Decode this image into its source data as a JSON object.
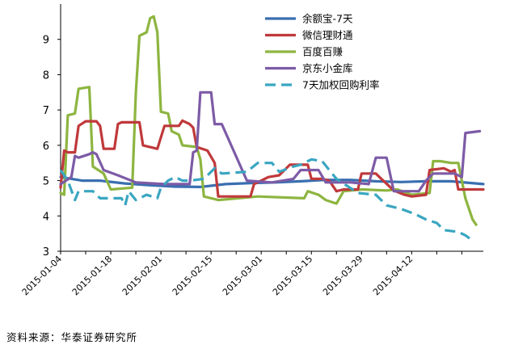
{
  "chart_data": {
    "type": "line",
    "title": "",
    "xlabel": "",
    "ylabel": "",
    "ylim": [
      3,
      10
    ],
    "yticks": [
      3,
      4,
      5,
      6,
      7,
      8,
      9
    ],
    "xlim": [
      "2015-01-04",
      "2015-05-02"
    ],
    "xticks": [
      "2015-01-04",
      "2015-01-18",
      "2015-02-01",
      "2015-02-15",
      "2015-03-01",
      "2015-03-15",
      "2015-03-29",
      "2015-04-12"
    ],
    "grid": false,
    "legend_position": "top-right",
    "series": [
      {
        "name": "余额宝-7天",
        "color": "#3a6fb0",
        "style": "solid",
        "points": [
          [
            "2015-01-04",
            5.1
          ],
          [
            "2015-01-10",
            5.0
          ],
          [
            "2015-01-15",
            5.0
          ],
          [
            "2015-01-22",
            4.92
          ],
          [
            "2015-01-29",
            4.87
          ],
          [
            "2015-02-05",
            4.83
          ],
          [
            "2015-02-12",
            4.82
          ],
          [
            "2015-02-19",
            4.9
          ],
          [
            "2015-02-26",
            4.93
          ],
          [
            "2015-03-05",
            4.95
          ],
          [
            "2015-03-12",
            4.98
          ],
          [
            "2015-03-19",
            5.02
          ],
          [
            "2015-03-26",
            5.02
          ],
          [
            "2015-04-02",
            4.98
          ],
          [
            "2015-04-09",
            4.96
          ],
          [
            "2015-04-16",
            4.98
          ],
          [
            "2015-04-23",
            4.98
          ],
          [
            "2015-05-02",
            4.9
          ]
        ]
      },
      {
        "name": "微信理财通",
        "color": "#c0393b",
        "style": "solid",
        "points": [
          [
            "2015-01-04",
            4.8
          ],
          [
            "2015-01-05",
            5.85
          ],
          [
            "2015-01-06",
            5.8
          ],
          [
            "2015-01-08",
            5.8
          ],
          [
            "2015-01-09",
            6.55
          ],
          [
            "2015-01-11",
            6.68
          ],
          [
            "2015-01-14",
            6.68
          ],
          [
            "2015-01-15",
            6.55
          ],
          [
            "2015-01-16",
            5.9
          ],
          [
            "2015-01-19",
            5.9
          ],
          [
            "2015-01-20",
            6.6
          ],
          [
            "2015-01-21",
            6.65
          ],
          [
            "2015-01-26",
            6.65
          ],
          [
            "2015-01-27",
            6.0
          ],
          [
            "2015-01-31",
            5.9
          ],
          [
            "2015-02-02",
            6.55
          ],
          [
            "2015-02-06",
            6.55
          ],
          [
            "2015-02-07",
            6.7
          ],
          [
            "2015-02-09",
            6.6
          ],
          [
            "2015-02-10",
            6.5
          ],
          [
            "2015-02-11",
            5.95
          ],
          [
            "2015-02-14",
            5.85
          ],
          [
            "2015-02-16",
            5.5
          ],
          [
            "2015-02-17",
            4.55
          ],
          [
            "2015-02-26",
            4.55
          ],
          [
            "2015-02-27",
            4.9
          ],
          [
            "2015-03-03",
            5.1
          ],
          [
            "2015-03-06",
            5.15
          ],
          [
            "2015-03-09",
            5.45
          ],
          [
            "2015-03-11",
            5.45
          ],
          [
            "2015-03-14",
            5.45
          ],
          [
            "2015-03-15",
            5.05
          ],
          [
            "2015-03-18",
            5.05
          ],
          [
            "2015-03-20",
            5.0
          ],
          [
            "2015-03-22",
            4.7
          ],
          [
            "2015-03-24",
            4.75
          ],
          [
            "2015-03-28",
            4.75
          ],
          [
            "2015-03-29",
            5.2
          ],
          [
            "2015-04-02",
            5.2
          ],
          [
            "2015-04-03",
            5.1
          ],
          [
            "2015-04-07",
            4.72
          ],
          [
            "2015-04-10",
            4.6
          ],
          [
            "2015-04-12",
            4.55
          ],
          [
            "2015-04-16",
            4.6
          ],
          [
            "2015-04-17",
            5.3
          ],
          [
            "2015-04-21",
            5.35
          ],
          [
            "2015-04-23",
            5.25
          ],
          [
            "2015-04-24",
            5.3
          ],
          [
            "2015-04-25",
            4.75
          ],
          [
            "2015-05-02",
            4.75
          ]
        ]
      },
      {
        "name": "百度百赚",
        "color": "#8db540",
        "style": "solid",
        "points": [
          [
            "2015-01-04",
            4.65
          ],
          [
            "2015-01-05",
            4.6
          ],
          [
            "2015-01-06",
            6.85
          ],
          [
            "2015-01-08",
            6.9
          ],
          [
            "2015-01-09",
            7.6
          ],
          [
            "2015-01-12",
            7.65
          ],
          [
            "2015-01-13",
            5.4
          ],
          [
            "2015-01-16",
            5.2
          ],
          [
            "2015-01-18",
            4.75
          ],
          [
            "2015-01-24",
            4.8
          ],
          [
            "2015-01-25",
            7.5
          ],
          [
            "2015-01-26",
            9.1
          ],
          [
            "2015-01-28",
            9.2
          ],
          [
            "2015-01-29",
            9.6
          ],
          [
            "2015-01-30",
            9.65
          ],
          [
            "2015-01-31",
            9.2
          ],
          [
            "2015-02-01",
            6.95
          ],
          [
            "2015-02-03",
            6.9
          ],
          [
            "2015-02-04",
            6.4
          ],
          [
            "2015-02-06",
            6.3
          ],
          [
            "2015-02-07",
            6.0
          ],
          [
            "2015-02-11",
            5.95
          ],
          [
            "2015-02-12",
            5.6
          ],
          [
            "2015-02-13",
            4.55
          ],
          [
            "2015-02-17",
            4.45
          ],
          [
            "2015-02-28",
            4.55
          ],
          [
            "2015-03-13",
            4.5
          ],
          [
            "2015-03-14",
            4.7
          ],
          [
            "2015-03-17",
            4.6
          ],
          [
            "2015-03-19",
            4.45
          ],
          [
            "2015-03-22",
            4.35
          ],
          [
            "2015-03-24",
            4.7
          ],
          [
            "2015-03-29",
            4.75
          ],
          [
            "2015-04-05",
            4.72
          ],
          [
            "2015-04-08",
            4.75
          ],
          [
            "2015-04-12",
            4.6
          ],
          [
            "2015-04-17",
            4.65
          ],
          [
            "2015-04-18",
            5.55
          ],
          [
            "2015-04-20",
            5.55
          ],
          [
            "2015-04-23",
            5.5
          ],
          [
            "2015-04-25",
            5.5
          ],
          [
            "2015-04-27",
            4.5
          ],
          [
            "2015-04-29",
            3.9
          ],
          [
            "2015-04-30",
            3.75
          ]
        ]
      },
      {
        "name": "京东小金库",
        "color": "#7d5ba6",
        "style": "solid",
        "points": [
          [
            "2015-01-04",
            4.9
          ],
          [
            "2015-01-07",
            5.1
          ],
          [
            "2015-01-08",
            5.7
          ],
          [
            "2015-01-09",
            5.65
          ],
          [
            "2015-01-12",
            5.75
          ],
          [
            "2015-01-13",
            5.8
          ],
          [
            "2015-01-14",
            5.75
          ],
          [
            "2015-01-16",
            5.3
          ],
          [
            "2015-01-20",
            5.15
          ],
          [
            "2015-01-25",
            4.95
          ],
          [
            "2015-02-02",
            4.9
          ],
          [
            "2015-02-09",
            4.9
          ],
          [
            "2015-02-10",
            5.8
          ],
          [
            "2015-02-11",
            5.85
          ],
          [
            "2015-02-12",
            7.5
          ],
          [
            "2015-02-15",
            7.5
          ],
          [
            "2015-02-16",
            6.6
          ],
          [
            "2015-02-18",
            6.6
          ],
          [
            "2015-02-25",
            5.0
          ],
          [
            "2015-03-04",
            4.95
          ],
          [
            "2015-03-10",
            5.05
          ],
          [
            "2015-03-12",
            5.3
          ],
          [
            "2015-03-17",
            5.3
          ],
          [
            "2015-03-19",
            4.95
          ],
          [
            "2015-03-26",
            4.95
          ],
          [
            "2015-03-31",
            4.9
          ],
          [
            "2015-04-02",
            5.65
          ],
          [
            "2015-04-05",
            5.65
          ],
          [
            "2015-04-07",
            4.7
          ],
          [
            "2015-04-14",
            4.7
          ],
          [
            "2015-04-16",
            5.0
          ],
          [
            "2015-04-18",
            5.2
          ],
          [
            "2015-04-24",
            5.2
          ],
          [
            "2015-04-26",
            5.1
          ],
          [
            "2015-04-27",
            6.35
          ],
          [
            "2015-05-01",
            6.4
          ]
        ]
      },
      {
        "name": "7天加权回购利率",
        "color": "#3aa6c1",
        "style": "dashed",
        "points": [
          [
            "2015-01-04",
            5.3
          ],
          [
            "2015-01-06",
            5.0
          ],
          [
            "2015-01-08",
            4.45
          ],
          [
            "2015-01-09",
            4.7
          ],
          [
            "2015-01-13",
            4.7
          ],
          [
            "2015-01-15",
            4.5
          ],
          [
            "2015-01-21",
            4.5
          ],
          [
            "2015-01-22",
            4.3
          ],
          [
            "2015-01-23",
            4.7
          ],
          [
            "2015-01-25",
            4.45
          ],
          [
            "2015-01-28",
            4.6
          ],
          [
            "2015-01-31",
            4.5
          ],
          [
            "2015-02-01",
            4.8
          ],
          [
            "2015-02-03",
            5.0
          ],
          [
            "2015-02-05",
            5.1
          ],
          [
            "2015-02-07",
            5.0
          ],
          [
            "2015-02-09",
            5.0
          ],
          [
            "2015-02-13",
            5.05
          ],
          [
            "2015-02-16",
            5.35
          ],
          [
            "2015-02-18",
            5.2
          ],
          [
            "2015-02-25",
            5.25
          ],
          [
            "2015-02-28",
            5.5
          ],
          [
            "2015-03-04",
            5.5
          ],
          [
            "2015-03-06",
            5.25
          ],
          [
            "2015-03-10",
            5.4
          ],
          [
            "2015-03-12",
            5.45
          ],
          [
            "2015-03-15",
            5.6
          ],
          [
            "2015-03-18",
            5.55
          ],
          [
            "2015-03-20",
            5.3
          ],
          [
            "2015-03-22",
            5.05
          ],
          [
            "2015-03-25",
            4.85
          ],
          [
            "2015-03-28",
            4.65
          ],
          [
            "2015-04-02",
            4.6
          ],
          [
            "2015-04-05",
            4.3
          ],
          [
            "2015-04-09",
            4.2
          ],
          [
            "2015-04-13",
            4.05
          ],
          [
            "2015-04-16",
            3.9
          ],
          [
            "2015-04-19",
            3.8
          ],
          [
            "2015-04-21",
            3.6
          ],
          [
            "2015-04-25",
            3.55
          ],
          [
            "2015-04-27",
            3.45
          ],
          [
            "2015-04-29",
            3.3
          ]
        ]
      }
    ]
  },
  "source_note": "资料来源：华泰证券研究所"
}
